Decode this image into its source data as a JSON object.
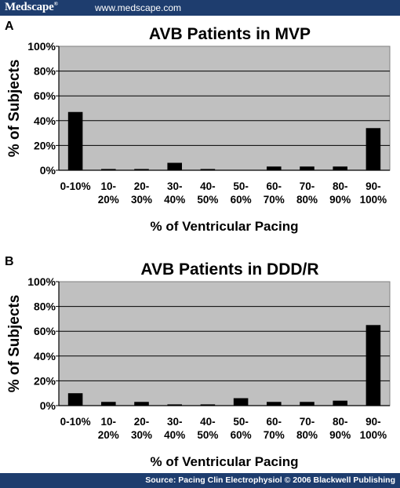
{
  "header": {
    "brand": "Medscape",
    "brand_mark": "®",
    "url": "www.medscape.com",
    "bg_color": "#1e3d6e"
  },
  "footer": {
    "source": "Source: Pacing Clin Electrophysiol © 2006 Blackwell Publishing"
  },
  "chart_data": [
    {
      "panel": "A",
      "type": "bar",
      "title": "AVB Patients in MVP",
      "xlabel": "% of Ventricular Pacing",
      "ylabel": "% of Subjects",
      "categories": [
        [
          "0-10%"
        ],
        [
          "10-",
          "20%"
        ],
        [
          "20-",
          "30%"
        ],
        [
          "30-",
          "40%"
        ],
        [
          "40-",
          "50%"
        ],
        [
          "50-",
          "60%"
        ],
        [
          "60-",
          "70%"
        ],
        [
          "70-",
          "80%"
        ],
        [
          "80-",
          "90%"
        ],
        [
          "90-",
          "100%"
        ]
      ],
      "values": [
        47,
        1,
        1,
        6,
        1,
        0,
        3,
        3,
        3,
        34
      ],
      "ylim": [
        0,
        100
      ],
      "yticks": [
        "0%",
        "20%",
        "40%",
        "60%",
        "80%",
        "100%"
      ],
      "grid": true,
      "plot_bg": "#c0c0c0",
      "bar_color": "#000000"
    },
    {
      "panel": "B",
      "type": "bar",
      "title": "AVB Patients in DDD/R",
      "xlabel": "% of Ventricular Pacing",
      "ylabel": "% of Subjects",
      "categories": [
        [
          "0-10%"
        ],
        [
          "10-",
          "20%"
        ],
        [
          "20-",
          "30%"
        ],
        [
          "30-",
          "40%"
        ],
        [
          "40-",
          "50%"
        ],
        [
          "50-",
          "60%"
        ],
        [
          "60-",
          "70%"
        ],
        [
          "70-",
          "80%"
        ],
        [
          "80-",
          "90%"
        ],
        [
          "90-",
          "100%"
        ]
      ],
      "values": [
        10,
        3,
        3,
        1,
        1,
        6,
        3,
        3,
        4,
        65
      ],
      "ylim": [
        0,
        100
      ],
      "yticks": [
        "0%",
        "20%",
        "40%",
        "60%",
        "80%",
        "100%"
      ],
      "grid": true,
      "plot_bg": "#c0c0c0",
      "bar_color": "#000000"
    }
  ]
}
